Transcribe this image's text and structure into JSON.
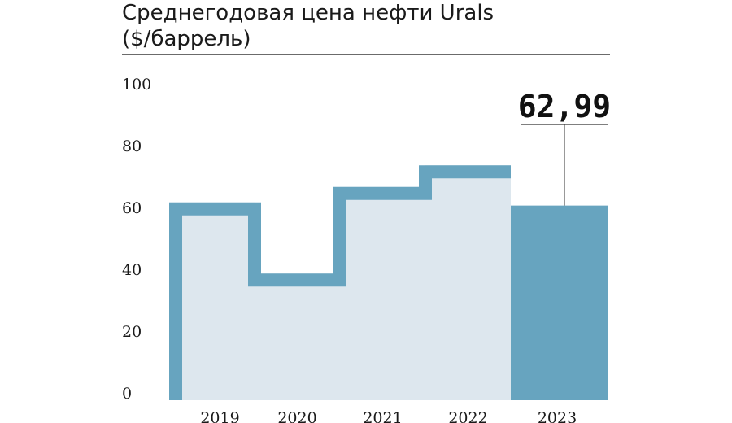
{
  "title": "Среднегодовая цена нефти Urals",
  "subtitle": "($/баррель)",
  "colors": {
    "background": "#ffffff",
    "light_fill": "#dde7ee",
    "outline": "#67a4bf",
    "highlight": "#67a4bf",
    "text": "#1a1a1a"
  },
  "chart_data": {
    "type": "bar",
    "categories": [
      "2019",
      "2020",
      "2021",
      "2022",
      "2023"
    ],
    "values": [
      64,
      41,
      69,
      76,
      62.99
    ],
    "highlight_index": 4,
    "callout_label": "62,99",
    "ylim": [
      0,
      100
    ],
    "yticks": [
      "0",
      "20",
      "40",
      "60",
      "80",
      "100"
    ],
    "grid": false,
    "xlabel": "",
    "ylabel": ""
  }
}
